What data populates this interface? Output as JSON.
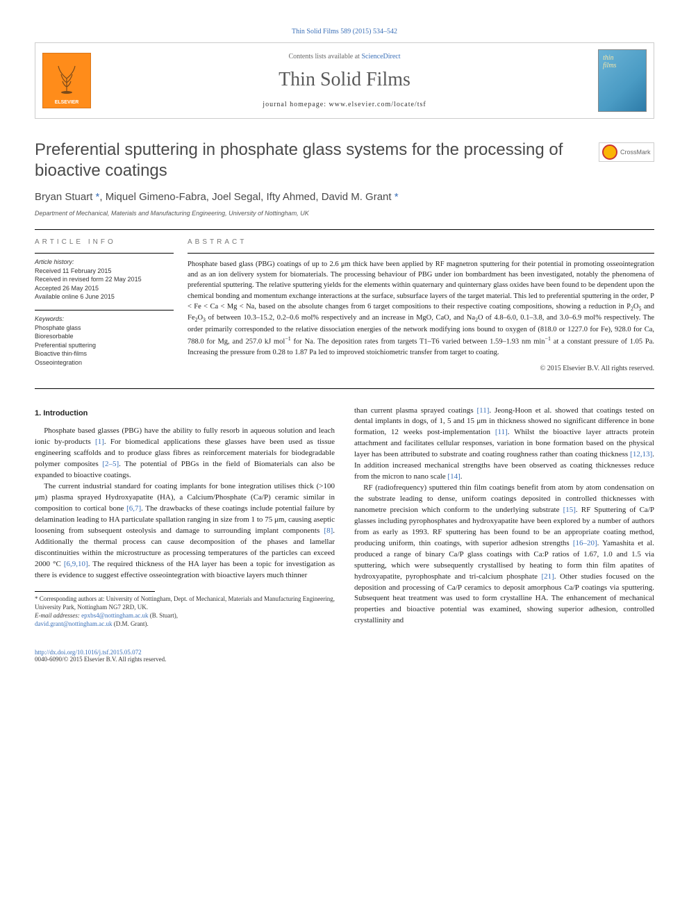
{
  "top_citation": "Thin Solid Films 589 (2015) 534–542",
  "header": {
    "contents_prefix": "Contents lists available at ",
    "contents_link": "ScienceDirect",
    "journal_title": "Thin Solid Films",
    "homepage_label": "journal homepage: www.elsevier.com/locate/tsf",
    "elsevier_label": "ELSEVIER",
    "cover_line1": "thin",
    "cover_line2": "films"
  },
  "crossmark_label": "CrossMark",
  "article": {
    "title": "Preferential sputtering in phosphate glass systems for the processing of bioactive coatings",
    "authors_html": "Bryan Stuart <span class='link'>*</span>, Miquel Gimeno-Fabra, Joel Segal, Ifty Ahmed, David M. Grant <span class='link'>*</span>",
    "affiliation": "Department of Mechanical, Materials and Manufacturing Engineering, University of Nottingham, UK"
  },
  "article_info": {
    "label": "article info",
    "history_heading": "Article history:",
    "history_lines": [
      "Received 11 February 2015",
      "Received in revised form 22 May 2015",
      "Accepted 26 May 2015",
      "Available online 6 June 2015"
    ],
    "keywords_heading": "Keywords:",
    "keywords": [
      "Phosphate glass",
      "Bioresorbable",
      "Preferential sputtering",
      "Bioactive thin-films",
      "Osseointegration"
    ]
  },
  "abstract": {
    "label": "abstract",
    "text_html": "Phosphate based glass (PBG) coatings of up to 2.6 μm thick have been applied by RF magnetron sputtering for their potential in promoting osseointegration and as an ion delivery system for biomaterials. The processing behaviour of PBG under ion bombardment has been investigated, notably the phenomena of preferential sputtering. The relative sputtering yields for the elements within quaternary and quinternary glass oxides have been found to be dependent upon the chemical bonding and momentum exchange interactions at the surface, subsurface layers of the target material. This led to preferential sputtering in the order, P &lt; Fe &lt; Ca &lt; Mg &lt; Na, based on the absolute changes from 6 target compositions to their respective coating compositions, showing a reduction in P<sub>2</sub>O<sub>5</sub> and Fe<sub>2</sub>O<sub>3</sub> of between 10.3–15.2, 0.2–0.6 mol% respectively and an increase in MgO, CaO, and Na<sub>2</sub>O of 4.8–6.0, 0.1–3.8, and 3.0–6.9 mol% respectively. The order primarily corresponded to the relative dissociation energies of the network modifying ions bound to oxygen of (818.0 or 1227.0 for Fe), 928.0 for Ca, 788.0 for Mg, and 257.0 kJ mol<sup>−1</sup> for Na. The deposition rates from targets T1–T6 varied between 1.59–1.93 nm min<sup>−1</sup> at a constant pressure of 1.05 Pa. Increasing the pressure from 0.28 to 1.87 Pa led to improved stoichiometric transfer from target to coating.",
    "copyright": "© 2015 Elsevier B.V. All rights reserved."
  },
  "body": {
    "section_heading": "1. Introduction",
    "col1_p1_html": "Phosphate based glasses (PBG) have the ability to fully resorb in aqueous solution and leach ionic by-products <span class='cite'>[1]</span>. For biomedical applications these glasses have been used as tissue engineering scaffolds and to produce glass fibres as reinforcement materials for biodegradable polymer composites <span class='cite'>[2–5]</span>. The potential of PBGs in the field of Biomaterials can also be expanded to bioactive coatings.",
    "col1_p2_html": "The current industrial standard for coating implants for bone integration utilises thick (&gt;100 μm) plasma sprayed Hydroxyapatite (HA), a Calcium/Phosphate (Ca/P) ceramic similar in composition to cortical bone <span class='cite'>[6,7]</span>. The drawbacks of these coatings include potential failure by delamination leading to HA particulate spallation ranging in size from 1 to 75 μm, causing aseptic loosening from subsequent osteolysis and damage to surrounding implant components <span class='cite'>[8]</span>. Additionally the thermal process can cause decomposition of the phases and lamellar discontinuities within the microstructure as processing temperatures of the particles can exceed 2000 °C <span class='cite'>[6,9,10]</span>. The required thickness of the HA layer has been a topic for investigation as there is evidence to suggest effective osseointegration with bioactive layers much thinner",
    "col2_p1_html": "than current plasma sprayed coatings <span class='cite'>[11]</span>. Jeong-Hoon et al. showed that coatings tested on dental implants in dogs, of 1, 5 and 15 μm in thickness showed no significant difference in bone formation, 12 weeks post-implementation <span class='cite'>[11]</span>. Whilst the bioactive layer attracts protein attachment and facilitates cellular responses, variation in bone formation based on the physical layer has been attributed to substrate and coating roughness rather than coating thickness <span class='cite'>[12,13]</span>. In addition increased mechanical strengths have been observed as coating thicknesses reduce from the micron to nano scale <span class='cite'>[14]</span>.",
    "col2_p2_html": "RF (radiofrequency) sputtered thin film coatings benefit from atom by atom condensation on the substrate leading to dense, uniform coatings deposited in controlled thicknesses with nanometre precision which conform to the underlying substrate <span class='cite'>[15]</span>. RF Sputtering of Ca/P glasses including pyrophosphates and hydroxyapatite have been explored by a number of authors from as early as 1993. RF sputtering has been found to be an appropriate coating method, producing uniform, thin coatings, with superior adhesion strengths <span class='cite'>[16–20]</span>. Yamashita et al. produced a range of binary Ca/P glass coatings with Ca:P ratios of 1.67, 1.0 and 1.5 via sputtering, which were subsequently crystallised by heating to form thin film apatites of hydroxyapatite, pyrophosphate and tri-calcium phosphate <span class='cite'>[21]</span>. Other studies focused on the deposition and processing of Ca/P ceramics to deposit amorphous Ca/P coatings via sputtering. Subsequent heat treatment was used to form crystalline HA. The enhancement of mechanical properties and bioactive potential was examined, showing superior adhesion, controlled crystallinity and"
  },
  "footnotes": {
    "corresponding": "* Corresponding authors at: University of Nottingham, Dept. of Mechanical, Materials and Manufacturing Engineering, University Park, Nottingham NG7 2RD, UK.",
    "email_label": "E-mail addresses: ",
    "email1": "epxbs4@nottingham.ac.uk",
    "email1_name": " (B. Stuart), ",
    "email2": "david.grant@nottingham.ac.uk",
    "email2_name": " (D.M. Grant)."
  },
  "footer": {
    "doi": "http://dx.doi.org/10.1016/j.tsf.2015.05.072",
    "issn_line": "0040-6090/© 2015 Elsevier B.V. All rights reserved."
  }
}
